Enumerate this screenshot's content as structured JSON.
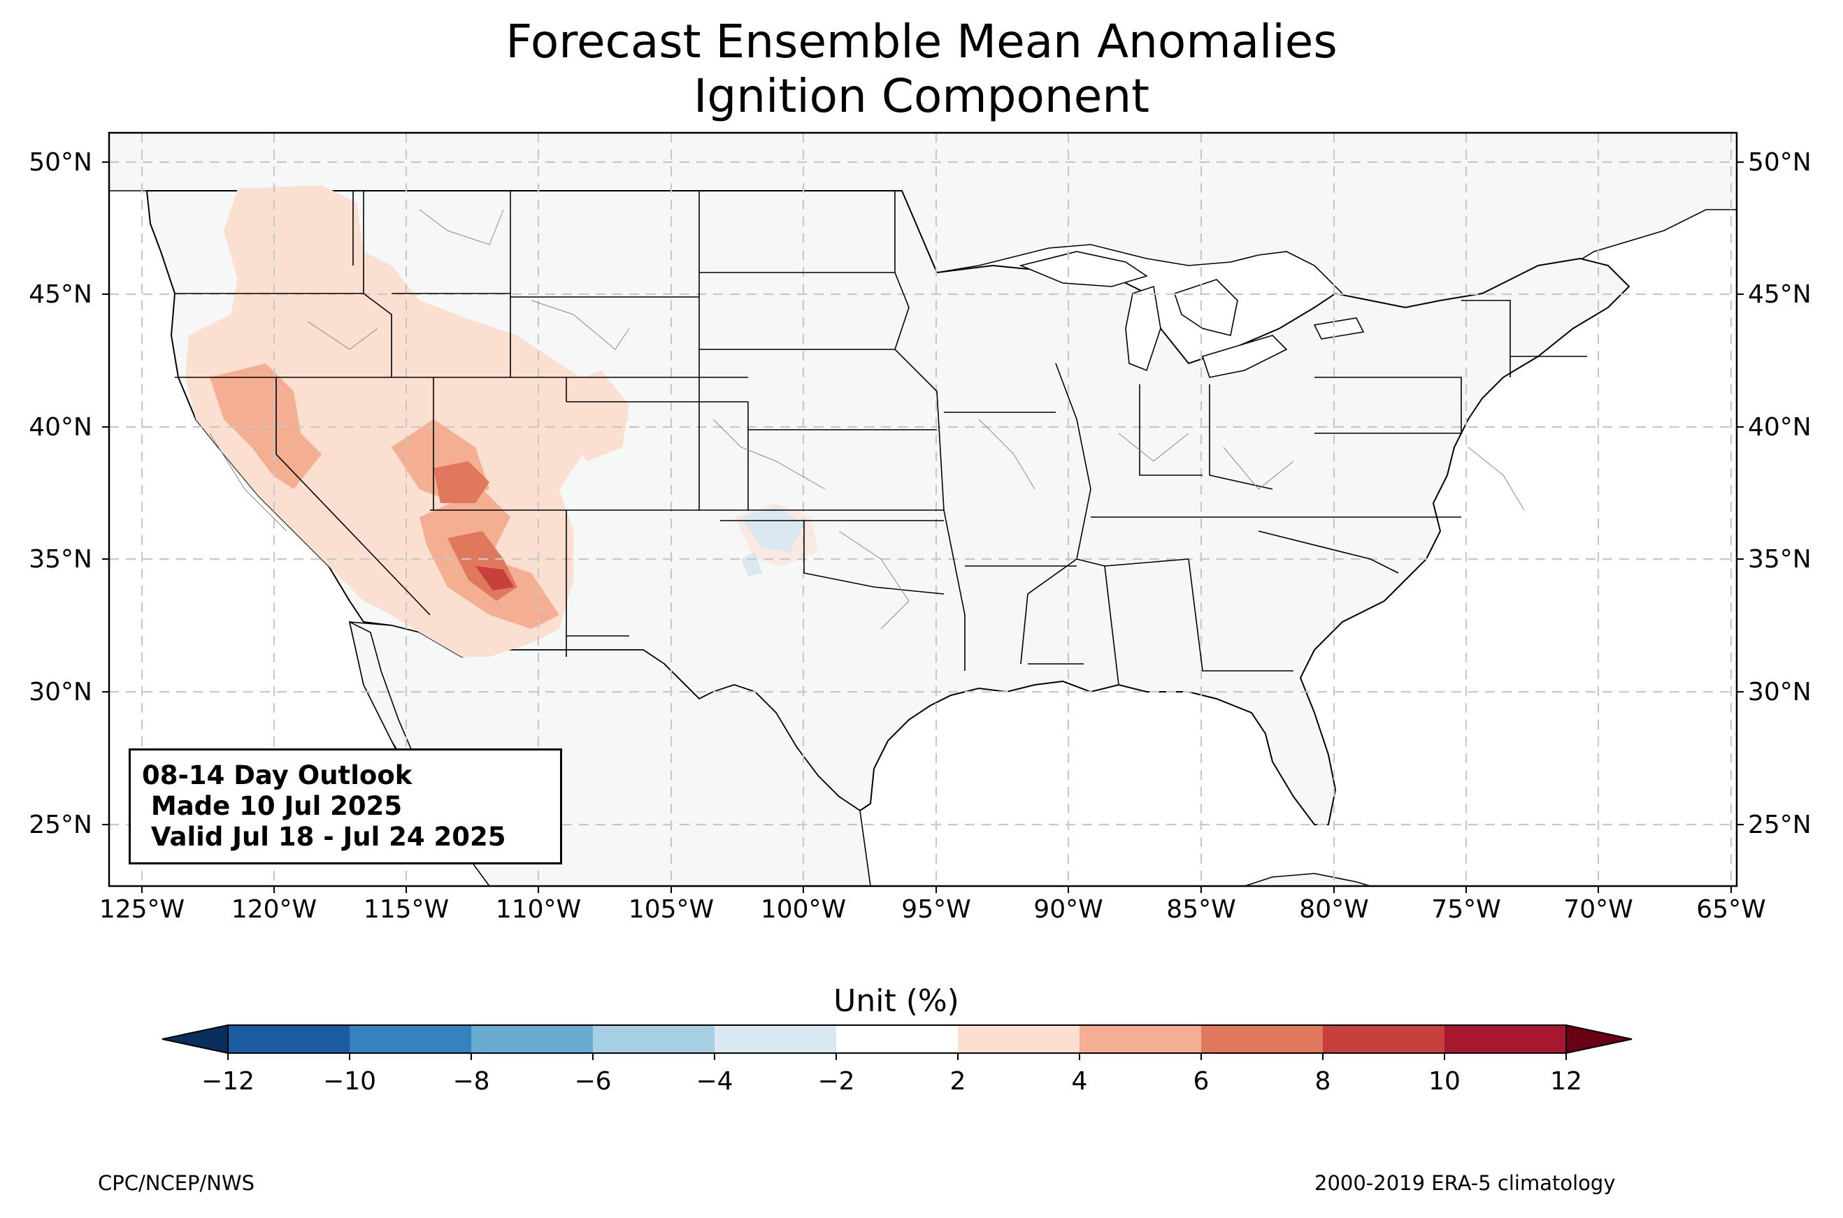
{
  "title": {
    "line1": "Forecast Ensemble Mean Anomalies",
    "line2": "Ignition Component"
  },
  "map": {
    "extent": {
      "lon_min": -126.3,
      "lon_max": -64.9,
      "lat_min": 22.8,
      "lat_max": 51.1
    },
    "gridlines": "dashed",
    "lat_ticks": [
      "50°N",
      "45°N",
      "40°N",
      "35°N",
      "30°N",
      "25°N"
    ],
    "lon_ticks": [
      "125°W",
      "120°W",
      "115°W",
      "110°W",
      "105°W",
      "100°W",
      "95°W",
      "90°W",
      "85°W",
      "80°W",
      "75°W",
      "70°W",
      "65°W"
    ],
    "land_color": "#f6f7f7",
    "anomaly_regions": [
      {
        "region": "northern Great Basin / Idaho",
        "level_pct": 2
      },
      {
        "region": "Utah / western Colorado",
        "level_pct": 4
      },
      {
        "region": "southern Utah",
        "level_pct": 6
      },
      {
        "region": "central Arizona",
        "level_pct": 6
      },
      {
        "region": "southeastern Arizona",
        "level_pct": 8
      },
      {
        "region": "northern California / Nevada",
        "level_pct": 4
      },
      {
        "region": "Oklahoma / Texas panhandle",
        "level_pct": -2
      }
    ]
  },
  "infobox": {
    "line1": "08-14 Day Outlook",
    "line2": " Made 10 Jul 2025",
    "line3": " Valid Jul 18 - Jul 24 2025"
  },
  "colorbar": {
    "label": "Unit (%)",
    "ticks": [
      "−12",
      "−10",
      "−8",
      "−6",
      "−4",
      "−2",
      "2",
      "4",
      "6",
      "8",
      "10",
      "12"
    ],
    "colors": [
      "#1c5b9f",
      "#3583bd",
      "#6aacd1",
      "#a7cfe4",
      "#d9e8f1",
      "#ffffff",
      "#fbdfd0",
      "#f4ae91",
      "#e0785e",
      "#c8403d",
      "#a6182f"
    ],
    "under_color": "#0a2f5f",
    "over_color": "#6a0013"
  },
  "footer": {
    "left": "CPC/NCEP/NWS",
    "right": "2000-2019 ERA-5 climatology"
  }
}
